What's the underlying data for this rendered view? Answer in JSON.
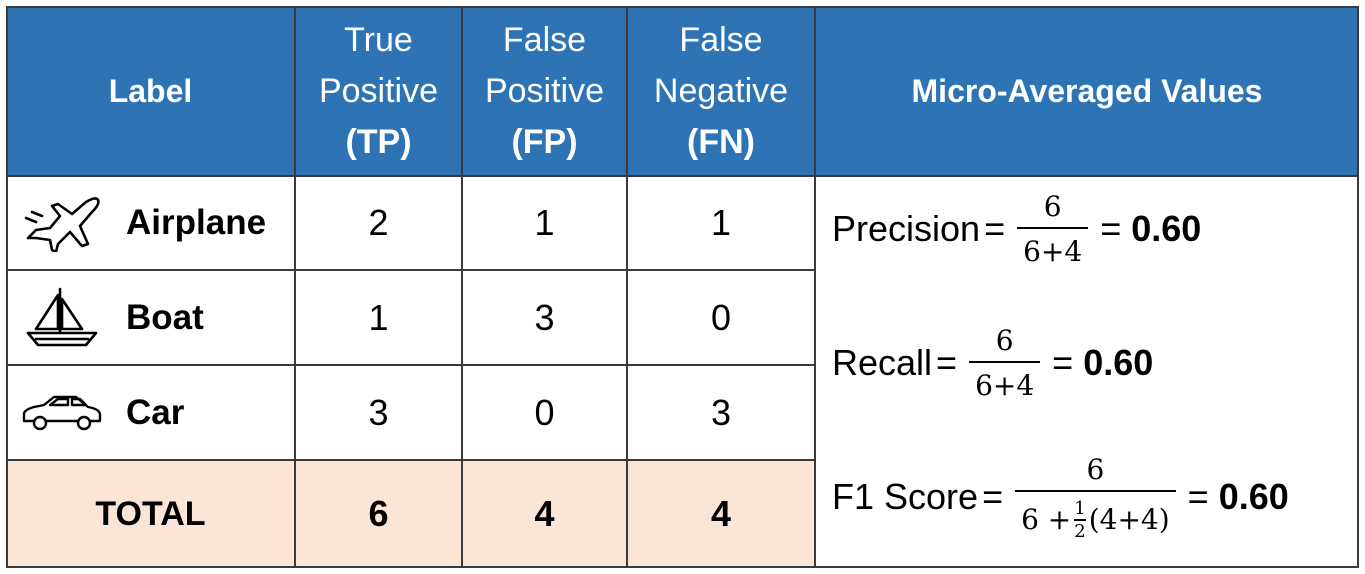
{
  "header": {
    "label": "Label",
    "tp": [
      "True",
      "Positive",
      "(TP)"
    ],
    "fp": [
      "False",
      "Positive",
      "(FP)"
    ],
    "fn": [
      "False",
      "Negative",
      "(FN)"
    ],
    "micro": "Micro-Averaged Values"
  },
  "rows": [
    {
      "icon": "airplane-icon",
      "label": "Airplane",
      "tp": "2",
      "fp": "1",
      "fn": "1"
    },
    {
      "icon": "boat-icon",
      "label": "Boat",
      "tp": "1",
      "fp": "3",
      "fn": "0"
    },
    {
      "icon": "car-icon",
      "label": "Car",
      "tp": "3",
      "fp": "0",
      "fn": "3"
    }
  ],
  "total": {
    "label": "TOTAL",
    "tp": "6",
    "fp": "4",
    "fn": "4"
  },
  "metrics": {
    "precision": {
      "name": "Precision",
      "eq": "=",
      "num": "6",
      "den": "6+4",
      "eq2": "=",
      "value": "0.60"
    },
    "recall": {
      "name": "Recall",
      "eq": "=",
      "num": "6",
      "den": "6+4",
      "eq2": "=",
      "value": "0.60"
    },
    "f1": {
      "name": "F1 Score",
      "eq": "=",
      "num": "6",
      "den_a": "6 +",
      "half_num": "1",
      "half_den": "2",
      "den_b": "(4+4)",
      "eq2": "=",
      "value": "0.60"
    }
  },
  "colors": {
    "header": "#2e74b5",
    "total": "#fbe5d6",
    "border": "#3a3a3a"
  }
}
